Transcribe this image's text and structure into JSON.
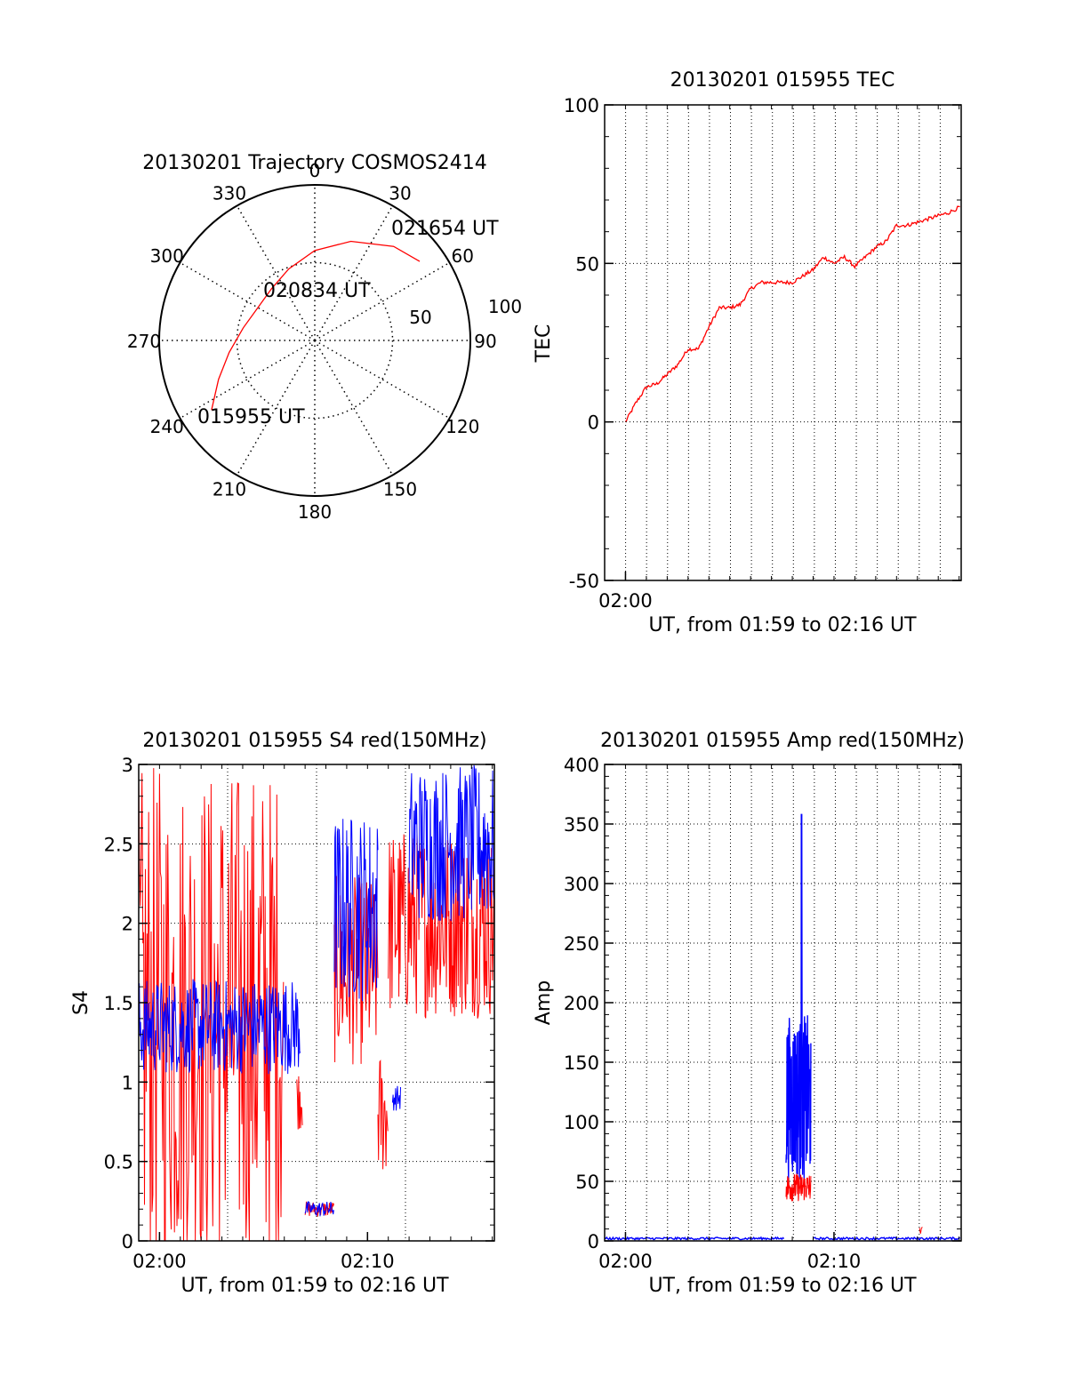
{
  "chart_data": [
    {
      "type": "polar",
      "title": "20130201 Trajectory COSMOS2414",
      "azimuth_ticks": [
        "0",
        "30",
        "60",
        "90",
        "120",
        "150",
        "180",
        "210",
        "240",
        "270",
        "300",
        "330"
      ],
      "radial_ticks": [
        "50",
        "100"
      ],
      "trajectory_points": [
        {
          "azimuth": 236,
          "elevation": 18
        },
        {
          "azimuth": 248,
          "elevation": 30
        },
        {
          "azimuth": 262,
          "elevation": 40
        },
        {
          "azimuth": 280,
          "elevation": 48
        },
        {
          "azimuth": 300,
          "elevation": 52
        },
        {
          "azimuth": 320,
          "elevation": 51
        },
        {
          "azimuth": 340,
          "elevation": 46
        },
        {
          "azimuth": 0,
          "elevation": 38
        },
        {
          "azimuth": 20,
          "elevation": 29
        },
        {
          "azimuth": 40,
          "elevation": 19
        },
        {
          "azimuth": 53,
          "elevation": 14
        }
      ],
      "annotations": [
        {
          "text": "015955 UT",
          "azimuth": 236,
          "elevation": 18
        },
        {
          "text": "020834 UT",
          "azimuth": 0,
          "elevation": 75
        },
        {
          "text": "021654 UT",
          "azimuth": 53,
          "elevation": 14
        }
      ],
      "colors": {
        "trajectory": "#ff0000"
      }
    },
    {
      "type": "line",
      "title": "20130201 015955 TEC",
      "ylabel": "TEC",
      "xlabel": "UT, from 01:59 to 02:16 UT",
      "ylim": [
        -50,
        100
      ],
      "xlim_minutes": [
        0,
        17.1
      ],
      "x_tick_labels": [
        "02:00"
      ],
      "y_tick_labels": [
        "100",
        "50",
        "0",
        "-50"
      ],
      "grid": true,
      "series": [
        {
          "color": "#ff0000",
          "x_minutes": [
            1.0,
            1.5,
            2.0,
            2.5,
            3.0,
            3.5,
            4.0,
            4.5,
            5.0,
            5.5,
            6.0,
            6.5,
            7.0,
            7.5,
            8.0,
            8.5,
            9.0,
            9.5,
            10.0,
            10.5,
            11.0,
            11.5,
            12.0,
            12.5,
            13.0,
            13.5,
            14.0,
            14.5,
            15.0,
            15.5,
            16.0,
            16.5,
            17.1
          ],
          "values": [
            0,
            6,
            11,
            12,
            15,
            18,
            23,
            23,
            30,
            36,
            36,
            37,
            42,
            44,
            44,
            44,
            44,
            46,
            48,
            52,
            50,
            52,
            49,
            52,
            55,
            57,
            62,
            62,
            63,
            64,
            65,
            66,
            68
          ]
        }
      ]
    },
    {
      "type": "line",
      "title": "20130201 015955 S4 red(150MHz)",
      "ylabel": "S4",
      "xlabel": "UT, from 01:59 to 02:16 UT",
      "ylim": [
        0,
        3
      ],
      "xlim_minutes": [
        0,
        17.1
      ],
      "x_tick_labels": [
        "02:00",
        "02:10"
      ],
      "y_tick_labels": [
        "3",
        "2.5",
        "2",
        "1.5",
        "1",
        "0.5",
        "0"
      ],
      "grid": true,
      "series": [
        {
          "color": "#ff0000",
          "noisy": true,
          "segments": [
            {
              "from": 0.0,
              "to": 7.0,
              "base": 1.4,
              "spread": 1.6
            },
            {
              "from": 7.6,
              "to": 7.9,
              "base": 0.9,
              "spread": 0.2
            },
            {
              "from": 8.0,
              "to": 9.4,
              "base": 0.2,
              "spread": 0.05
            },
            {
              "from": 9.4,
              "to": 11.5,
              "base": 1.7,
              "spread": 0.6
            },
            {
              "from": 11.5,
              "to": 12.0,
              "base": 0.8,
              "spread": 0.4
            },
            {
              "from": 12.0,
              "to": 17.1,
              "base": 2.0,
              "spread": 0.6
            }
          ]
        },
        {
          "color": "#0000ff",
          "noisy": true,
          "segments": [
            {
              "from": 0.0,
              "to": 7.8,
              "base": 1.35,
              "spread": 0.3
            },
            {
              "from": 8.0,
              "to": 9.4,
              "base": 0.2,
              "spread": 0.05
            },
            {
              "from": 9.4,
              "to": 11.5,
              "base": 2.1,
              "spread": 0.6
            },
            {
              "from": 12.2,
              "to": 12.6,
              "base": 0.9,
              "spread": 0.08
            },
            {
              "from": 13.0,
              "to": 17.1,
              "base": 2.5,
              "spread": 0.5
            }
          ]
        }
      ]
    },
    {
      "type": "line",
      "title": "20130201 015955 Amp red(150MHz)",
      "ylabel": "Amp",
      "xlabel": "UT, from 01:59 to 02:16 UT",
      "ylim": [
        0,
        400
      ],
      "xlim_minutes": [
        0,
        17.1
      ],
      "x_tick_labels": [
        "02:00",
        "02:10"
      ],
      "y_tick_labels": [
        "400",
        "350",
        "300",
        "250",
        "200",
        "150",
        "100",
        "50",
        "0"
      ],
      "grid": true,
      "series": [
        {
          "color": "#0000ff",
          "noisy": true,
          "segments": [
            {
              "from": 0.0,
              "to": 8.6,
              "base": 2,
              "spread": 1
            },
            {
              "from": 8.7,
              "to": 9.9,
              "base": 120,
              "spread": 70,
              "peak": 358
            },
            {
              "from": 10.0,
              "to": 17.1,
              "base": 2,
              "spread": 1
            }
          ]
        },
        {
          "color": "#ff0000",
          "noisy": true,
          "segments": [
            {
              "from": 8.7,
              "to": 9.9,
              "base": 45,
              "spread": 12
            },
            {
              "from": 15.1,
              "to": 15.3,
              "base": 8,
              "spread": 4
            }
          ]
        }
      ]
    }
  ]
}
